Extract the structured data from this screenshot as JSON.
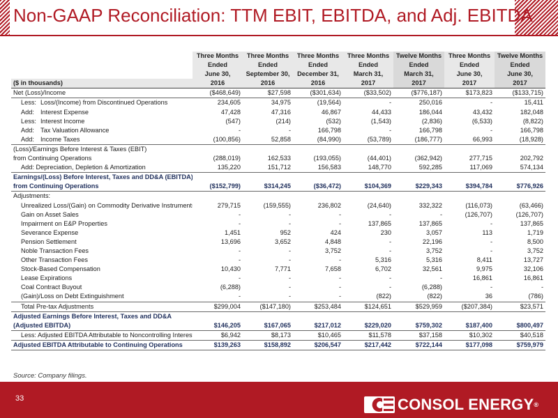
{
  "title_part1": "Non-GAAP Reconciliation:",
  "title_part2": "TTM EBIT, EBITDA, and Adj. EBITDA",
  "table": {
    "units_label": "($ in thousands)",
    "col_line1": [
      "Three Months",
      "Three Months",
      "Three Months",
      "Three Months",
      "Twelve Months",
      "Three Months",
      "Twelve Months"
    ],
    "col_line2": [
      "Ended",
      "Ended",
      "Ended",
      "Ended",
      "Ended",
      "Ended",
      "Ended"
    ],
    "col_line3": [
      "June 30,",
      "September 30,",
      "December 31,",
      "March 31,",
      "March 31,",
      "June 30,",
      "June 30,"
    ],
    "col_year": [
      "2016",
      "2016",
      "2016",
      "2017",
      "2017",
      "2017",
      "2017"
    ],
    "rows": [
      {
        "label": "Net (Loss)/Income",
        "values": [
          "($468,649)",
          "$27,598",
          "($301,634)",
          "($33,502)",
          "($776,187)",
          "$173,823",
          "($133,715)"
        ]
      },
      {
        "prefix": "Less:",
        "label": "Loss/(Income) from Discontinued Operations",
        "values": [
          "234,605",
          "34,975",
          "(19,564)",
          "-",
          "250,016",
          "-",
          "15,411"
        ]
      },
      {
        "prefix": "Add:",
        "label": "Interest Expense",
        "values": [
          "47,428",
          "47,316",
          "46,867",
          "44,433",
          "186,044",
          "43,432",
          "182,048"
        ]
      },
      {
        "prefix": "Less:",
        "label": "Interest Income",
        "values": [
          "(547)",
          "(214)",
          "(532)",
          "(1,543)",
          "(2,836)",
          "(6,533)",
          "(8,822)"
        ]
      },
      {
        "prefix": "Add:",
        "label": "Tax Valuation Allowance",
        "values": [
          "-",
          "-",
          "166,798",
          "-",
          "166,798",
          "-",
          "166,798"
        ]
      },
      {
        "prefix": "Add:",
        "label": "Income Taxes",
        "values": [
          "(100,856)",
          "52,858",
          "(84,990)",
          "(53,789)",
          "(186,777)",
          "66,993",
          "(18,928)"
        ]
      },
      {
        "label": "(Loss)/Earnings Before Interest & Taxes (EBIT)",
        "values": [
          "",
          "",
          "",
          "",
          "",
          "",
          ""
        ]
      },
      {
        "label": "from Continuing Operations",
        "values": [
          "(288,019)",
          "162,533",
          "(193,055)",
          "(44,401)",
          "(362,942)",
          "277,715",
          "202,792"
        ]
      },
      {
        "label": "Add: Depreciation, Depletion & Amortization",
        "values": [
          "135,220",
          "151,712",
          "156,583",
          "148,770",
          "592,285",
          "117,069",
          "574,134"
        ]
      },
      {
        "label": "Earnings/(Loss) Before Interest, Taxes and DD&A (EBITDA)",
        "values": [
          "",
          "",
          "",
          "",
          "",
          "",
          ""
        ]
      },
      {
        "label": "from Continuing Operations",
        "values": [
          "($152,799)",
          "$314,245",
          "($36,472)",
          "$104,369",
          "$229,343",
          "$394,784",
          "$776,926"
        ]
      },
      {
        "label": "Adjustments:",
        "values": [
          "",
          "",
          "",
          "",
          "",
          "",
          ""
        ]
      },
      {
        "label": "Unrealized Loss/(Gain) on Commodity Derivative Instruments",
        "values": [
          "279,715",
          "(159,555)",
          "236,802",
          "(24,640)",
          "332,322",
          "(116,073)",
          "(63,466)"
        ]
      },
      {
        "label": "Gain on Asset Sales",
        "values": [
          "-",
          "-",
          "-",
          "-",
          "-",
          "(126,707)",
          "(126,707)"
        ]
      },
      {
        "label": "Impairment on E&P Properties",
        "values": [
          "-",
          "-",
          "-",
          "137,865",
          "137,865",
          "-",
          "137,865"
        ]
      },
      {
        "label": "Severance Expense",
        "values": [
          "1,451",
          "952",
          "424",
          "230",
          "3,057",
          "113",
          "1,719"
        ]
      },
      {
        "label": "Pension Settlement",
        "values": [
          "13,696",
          "3,652",
          "4,848",
          "-",
          "22,196",
          "-",
          "8,500"
        ]
      },
      {
        "label": "Noble Transaction Fees",
        "values": [
          "-",
          "-",
          "3,752",
          "-",
          "3,752",
          "-",
          "3,752"
        ]
      },
      {
        "label": "Other Transaction Fees",
        "values": [
          "-",
          "-",
          "-",
          "5,316",
          "5,316",
          "8,411",
          "13,727"
        ]
      },
      {
        "label": "Stock-Based Compensation",
        "values": [
          "10,430",
          "7,771",
          "7,658",
          "6,702",
          "32,561",
          "9,975",
          "32,106"
        ]
      },
      {
        "label": "Lease Expirations",
        "values": [
          "-",
          "-",
          "-",
          "-",
          "-",
          "16,861",
          "16,861"
        ]
      },
      {
        "label": "Coal Contract Buyout",
        "values": [
          "(6,288)",
          "-",
          "-",
          "-",
          "(6,288)",
          "-",
          "-"
        ]
      },
      {
        "label": "(Gain)/Loss on Debt Extinguishment",
        "values": [
          "-",
          "-",
          "-",
          "(822)",
          "(822)",
          "36",
          "(786)"
        ]
      },
      {
        "label": "Total Pre-tax Adjustments",
        "values": [
          "$299,004",
          "($147,180)",
          "$253,484",
          "$124,651",
          "$529,959",
          "($207,384)",
          "$23,571"
        ]
      },
      {
        "label": "Adjusted Earnings Before Interest, Taxes and DD&A",
        "values": [
          "",
          "",
          "",
          "",
          "",
          "",
          ""
        ]
      },
      {
        "label": "(Adjusted EBITDA)",
        "values": [
          "$146,205",
          "$167,065",
          "$217,012",
          "$229,020",
          "$759,302",
          "$187,400",
          "$800,497"
        ]
      },
      {
        "label": "Less: Adjusted EBITDA Attributable to Noncontrolling Interest",
        "values": [
          "$6,942",
          "$8,173",
          "$10,465",
          "$11,578",
          "$37,158",
          "$10,302",
          "$40,518"
        ]
      },
      {
        "label": "Adjusted EBITDA Attributable to Continuing Operations",
        "values": [
          "$139,263",
          "$158,892",
          "$206,547",
          "$217,442",
          "$722,144",
          "$177,098",
          "$759,979"
        ]
      }
    ]
  },
  "source_note": "Source: Company filings.",
  "page_number": "33",
  "logo": {
    "word1": "CONSOL",
    "word2": "ENERGY",
    "registered": "®"
  },
  "colors": {
    "accent": "#b01a24",
    "heading_navy": "#1f2f5c"
  }
}
